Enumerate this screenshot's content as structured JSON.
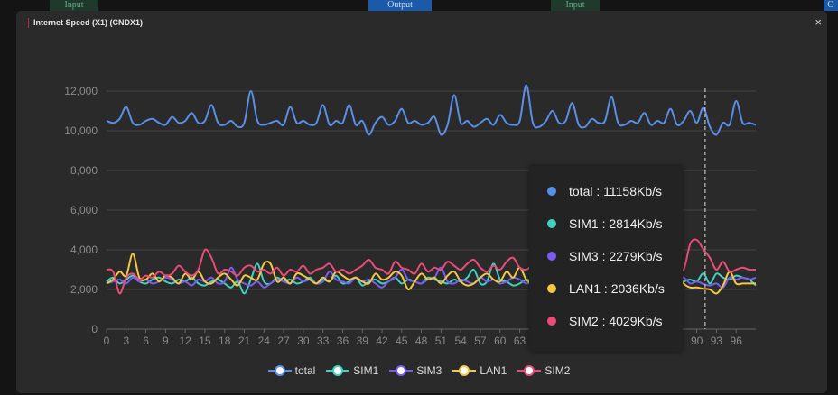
{
  "background": {
    "buttons": [
      {
        "label": "Input"
      },
      {
        "label": "Output"
      },
      {
        "label": "Input"
      },
      {
        "label": "O"
      }
    ]
  },
  "modal": {
    "title": "Internet Speed (X1) (CNDX1)",
    "close_icon": "×"
  },
  "chart_data": {
    "type": "line",
    "ylim": [
      0,
      12000
    ],
    "yticks": [
      "0",
      "2,000",
      "4,000",
      "6,000",
      "8,000",
      "10,000",
      "12,000"
    ],
    "ytick_values": [
      0,
      2000,
      4000,
      6000,
      8000,
      10000,
      12000
    ],
    "xticks": [
      "0",
      "3",
      "6",
      "9",
      "12",
      "15",
      "18",
      "21",
      "24",
      "27",
      "30",
      "33",
      "36",
      "39",
      "42",
      "45",
      "48",
      "51",
      "54",
      "57",
      "60",
      "63",
      "66",
      "69",
      "72",
      "75",
      "78",
      "81",
      "84",
      "87",
      "90",
      "93",
      "96"
    ],
    "x_range": [
      0,
      99
    ],
    "grid": true,
    "legend_position": "bottom",
    "highlight_index": 91,
    "series": [
      {
        "name": "total",
        "color": "#5a8fe8",
        "values": [
          10500,
          10400,
          10600,
          11200,
          10400,
          10300,
          10500,
          10600,
          10400,
          10300,
          10700,
          10400,
          10500,
          10900,
          10400,
          10500,
          11300,
          10400,
          10300,
          10500,
          10200,
          10400,
          12000,
          10500,
          10300,
          10400,
          10500,
          10300,
          11200,
          10400,
          10500,
          10300,
          10400,
          11300,
          10300,
          10500,
          10400,
          11300,
          10300,
          10500,
          9800,
          10400,
          10700,
          10300,
          10500,
          11100,
          10400,
          10500,
          10300,
          10400,
          10700,
          9800,
          10300,
          11800,
          10400,
          10500,
          10200,
          10400,
          10600,
          10300,
          10800,
          10400,
          10300,
          10500,
          12300,
          10400,
          10200,
          10500,
          11000,
          10400,
          10500,
          11400,
          10300,
          10200,
          10600,
          10400,
          10500,
          11700,
          10400,
          10300,
          10500,
          10400,
          10900,
          10300,
          10500,
          10400,
          11100,
          10300,
          10500,
          11000,
          10400,
          11158,
          10200,
          9800,
          10400,
          10300,
          11500,
          10400,
          10400,
          10300
        ]
      },
      {
        "name": "SIM1",
        "color": "#3fd2bf",
        "values": [
          2400,
          2600,
          2300,
          2500,
          2700,
          2400,
          2300,
          2500,
          2600,
          2400,
          2300,
          2500,
          2400,
          2600,
          2300,
          2200,
          2400,
          2500,
          2300,
          2100,
          2400,
          1800,
          2500,
          3300,
          2400,
          2300,
          2600,
          2400,
          2500,
          2300,
          2400,
          2600,
          2300,
          2500,
          2400,
          2700,
          2300,
          2400,
          2600,
          2200,
          2400,
          2500,
          2300,
          2400,
          2600,
          2300,
          2500,
          2400,
          2300,
          2600,
          2500,
          2400,
          2300,
          2500,
          2400,
          2600,
          3000,
          2300,
          2400,
          3300,
          2500,
          2400,
          2200,
          2300,
          2500,
          2400,
          2600,
          2300,
          2500,
          2400,
          2300,
          2600,
          2400,
          2500,
          2300,
          2400,
          2600,
          2300,
          2500,
          2400,
          2300,
          2500,
          2400,
          2600,
          2300,
          2400,
          2500,
          2300,
          2400,
          2500,
          2400,
          2814,
          2300,
          2800,
          2600,
          2500,
          2700,
          2600,
          2500,
          2200
        ]
      },
      {
        "name": "SIM3",
        "color": "#7a5cf0",
        "values": [
          2300,
          2400,
          2500,
          2300,
          2600,
          2400,
          2500,
          2300,
          2400,
          2600,
          2500,
          2300,
          2400,
          2200,
          2500,
          2400,
          2600,
          2300,
          2400,
          3100,
          2500,
          2300,
          2200,
          2400,
          2100,
          2300,
          2500,
          2400,
          2300,
          2600,
          2400,
          2500,
          2300,
          2400,
          2900,
          2500,
          2400,
          2300,
          2600,
          2400,
          2500,
          2300,
          2100,
          2400,
          2600,
          3000,
          2500,
          2400,
          2300,
          2500,
          2600,
          3100,
          2400,
          2300,
          2500,
          2400,
          2300,
          2600,
          2400,
          2500,
          2300,
          2400,
          2600,
          2500,
          2300,
          2400,
          2500,
          2300,
          2600,
          2400,
          2300,
          2500,
          2400,
          2600,
          2300,
          2400,
          2500,
          2300,
          2400,
          2600,
          2500,
          2400,
          2300,
          2500,
          2400,
          2600,
          2300,
          2500,
          2600,
          2300,
          2400,
          2279,
          2200,
          2300,
          2100,
          2600,
          2500,
          2600,
          2500,
          2600
        ]
      },
      {
        "name": "LAN1",
        "color": "#f5c842",
        "values": [
          2300,
          2500,
          2900,
          2700,
          3800,
          2600,
          2500,
          2800,
          2400,
          2700,
          2600,
          2300,
          2800,
          2500,
          2900,
          2400,
          2300,
          2600,
          2800,
          2500,
          2200,
          2700,
          2600,
          2500,
          3300,
          3300,
          2400,
          2600,
          2300,
          2800,
          2700,
          2500,
          2300,
          2600,
          2400,
          2900,
          2700,
          2500,
          2600,
          2400,
          2300,
          2800,
          2500,
          2600,
          2900,
          2700,
          2000,
          2400,
          2800,
          2500,
          2600,
          2300,
          2700,
          2900,
          2400,
          2200,
          2300,
          2600,
          2800,
          2500,
          2400,
          2900,
          2600,
          3100,
          2500,
          2300,
          2600,
          2700,
          2400,
          2800,
          2500,
          2300,
          2600,
          2900,
          2400,
          2700,
          2500,
          2300,
          2600,
          2800,
          2400,
          2500,
          2700,
          2300,
          2600,
          2400,
          2500,
          2800,
          2300,
          2100,
          2100,
          2036,
          2000,
          1800,
          2200,
          2900,
          2300,
          2300,
          2300,
          2300
        ]
      },
      {
        "name": "SIM2",
        "color": "#ec4b78",
        "values": [
          3000,
          2900,
          1800,
          2600,
          2800,
          2500,
          2700,
          2600,
          2900,
          2700,
          2800,
          3200,
          2900,
          2700,
          3000,
          4000,
          3600,
          2800,
          3000,
          2900,
          2700,
          3100,
          3200,
          2900,
          3000,
          2800,
          3100,
          2700,
          3000,
          2900,
          3200,
          2800,
          3000,
          3100,
          3300,
          2900,
          3000,
          2800,
          3000,
          3200,
          3500,
          3100,
          3000,
          2800,
          3400,
          3100,
          3000,
          2800,
          3300,
          2900,
          3100,
          3000,
          3400,
          3200,
          3000,
          3300,
          3500,
          3100,
          2900,
          3200,
          3000,
          3400,
          3600,
          3100,
          3000,
          3200,
          2900,
          3300,
          3000,
          3100,
          3400,
          3000,
          3200,
          2900,
          3100,
          3300,
          3000,
          3100,
          3400,
          3200,
          3000,
          3100,
          3300,
          3000,
          3200,
          2900,
          2900,
          3200,
          3000,
          4300,
          4500,
          4029,
          3600,
          3000,
          3400,
          2900,
          3000,
          3100,
          3000,
          3000
        ]
      }
    ]
  },
  "tooltip": {
    "rows": [
      {
        "label": "total : 11158Kb/s",
        "color": "#5a8fe8"
      },
      {
        "label": "SIM1 :  2814Kb/s",
        "color": "#3fd2bf"
      },
      {
        "label": "SIM3 :  2279Kb/s",
        "color": "#7a5cf0"
      },
      {
        "label": "LAN1 : 2036Kb/s",
        "color": "#f5c842"
      },
      {
        "label": "SIM2 :  4029Kb/s",
        "color": "#ec4b78"
      }
    ]
  },
  "legend": [
    {
      "label": "total",
      "color": "#5a8fe8"
    },
    {
      "label": "SIM1",
      "color": "#3fd2bf"
    },
    {
      "label": "SIM3",
      "color": "#7a5cf0"
    },
    {
      "label": "LAN1",
      "color": "#f5c842"
    },
    {
      "label": "SIM2",
      "color": "#ec4b78"
    }
  ]
}
